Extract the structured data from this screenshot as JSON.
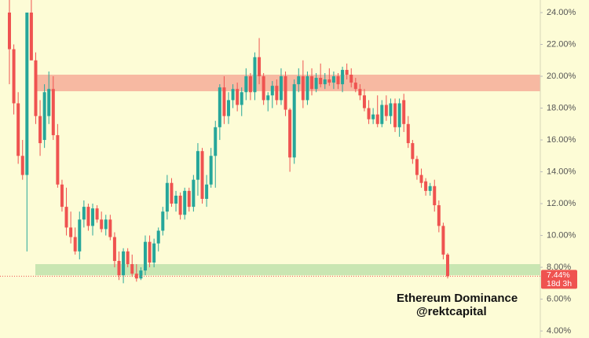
{
  "chart_data": {
    "type": "candlestick",
    "up_color": "#26a69a",
    "down_color": "#ef5350",
    "ylim": [
      3.56,
      24.79
    ],
    "yticks": [
      {
        "value": 4,
        "label": "4.00%"
      },
      {
        "value": 6,
        "label": "6.00%"
      },
      {
        "value": 8,
        "label": "8.00%"
      },
      {
        "value": 10,
        "label": "10.00%"
      },
      {
        "value": 12,
        "label": "12.00%"
      },
      {
        "value": 14,
        "label": "14.00%"
      },
      {
        "value": 16,
        "label": "16.00%"
      },
      {
        "value": 18,
        "label": "18.00%"
      },
      {
        "value": 20,
        "label": "20.00%"
      },
      {
        "value": 22,
        "label": "22.00%"
      },
      {
        "value": 24,
        "label": "24.00%"
      }
    ],
    "grid": false,
    "bands": [
      {
        "from": 19.06,
        "to": 20.1,
        "color": "#f7b9a2"
      },
      {
        "from": 7.5,
        "to": 8.2,
        "color": "#c9e6b2"
      }
    ],
    "last_price": 7.44,
    "last_price_label": "7.44%",
    "countdown": "18d 3h",
    "annotations": [
      "Ethereum Dominance",
      "@rektcapital"
    ],
    "ohlc": [
      [
        24.0,
        24.8,
        19.5,
        21.7
      ],
      [
        21.7,
        22.0,
        17.6,
        18.3
      ],
      [
        18.3,
        19.0,
        14.5,
        15.0
      ],
      [
        15.0,
        16.0,
        13.5,
        13.8
      ],
      [
        13.8,
        24.0,
        9.0,
        24.0
      ],
      [
        24.0,
        24.8,
        21.0,
        21.0
      ],
      [
        21.0,
        21.5,
        17.0,
        17.5
      ],
      [
        17.5,
        18.5,
        15.0,
        15.8
      ],
      [
        16.0,
        19.5,
        15.5,
        19.0
      ],
      [
        17.5,
        20.3,
        17.0,
        19.2
      ],
      [
        19.2,
        20.0,
        16.0,
        16.3
      ],
      [
        16.3,
        17.0,
        13.0,
        13.2
      ],
      [
        13.2,
        13.5,
        11.5,
        11.8
      ],
      [
        11.8,
        13.0,
        10.0,
        10.5
      ],
      [
        10.5,
        11.5,
        9.5,
        9.9
      ],
      [
        9.9,
        10.5,
        8.8,
        9.0
      ],
      [
        9.0,
        11.5,
        8.5,
        11.0
      ],
      [
        11.0,
        12.2,
        10.5,
        11.8
      ],
      [
        11.8,
        12.0,
        10.3,
        10.6
      ],
      [
        10.6,
        12.0,
        10.0,
        11.7
      ],
      [
        11.7,
        11.9,
        10.8,
        11.0
      ],
      [
        11.0,
        11.5,
        10.2,
        10.4
      ],
      [
        10.4,
        11.3,
        10.0,
        11.0
      ],
      [
        11.0,
        11.3,
        9.7,
        9.9
      ],
      [
        9.9,
        10.2,
        8.0,
        8.4
      ],
      [
        8.4,
        9.0,
        7.2,
        7.5
      ],
      [
        7.5,
        9.2,
        7.0,
        9.0
      ],
      [
        9.0,
        9.2,
        8.0,
        8.2
      ],
      [
        8.2,
        8.8,
        7.4,
        7.6
      ],
      [
        7.6,
        8.2,
        7.1,
        7.3
      ],
      [
        7.3,
        8.0,
        7.2,
        7.8
      ],
      [
        7.8,
        10.0,
        7.5,
        9.6
      ],
      [
        9.6,
        10.0,
        8.0,
        8.3
      ],
      [
        8.3,
        9.8,
        8.0,
        9.5
      ],
      [
        9.5,
        10.5,
        9.0,
        10.3
      ],
      [
        10.3,
        11.8,
        10.0,
        11.5
      ],
      [
        11.5,
        13.8,
        11.0,
        13.3
      ],
      [
        13.3,
        13.6,
        11.8,
        12.0
      ],
      [
        12.0,
        12.8,
        11.5,
        12.5
      ],
      [
        12.5,
        12.7,
        11.0,
        11.3
      ],
      [
        11.3,
        13.0,
        11.0,
        12.8
      ],
      [
        12.8,
        13.0,
        11.5,
        11.8
      ],
      [
        11.8,
        13.8,
        11.5,
        13.5
      ],
      [
        13.5,
        15.8,
        12.5,
        15.3
      ],
      [
        15.3,
        15.5,
        12.0,
        12.3
      ],
      [
        12.3,
        13.8,
        11.8,
        13.2
      ],
      [
        13.2,
        15.5,
        13.0,
        15.0
      ],
      [
        15.0,
        17.2,
        13.0,
        16.8
      ],
      [
        16.8,
        19.5,
        16.0,
        19.3
      ],
      [
        19.3,
        20.0,
        17.0,
        17.5
      ],
      [
        17.5,
        19.0,
        17.0,
        18.5
      ],
      [
        18.5,
        19.5,
        18.0,
        19.2
      ],
      [
        19.2,
        19.6,
        17.8,
        18.2
      ],
      [
        18.2,
        19.3,
        17.5,
        19.0
      ],
      [
        19.0,
        20.5,
        18.5,
        20.0
      ],
      [
        20.0,
        20.2,
        18.5,
        19.0
      ],
      [
        19.0,
        21.5,
        18.5,
        21.2
      ],
      [
        21.2,
        22.4,
        19.5,
        20.0
      ],
      [
        20.0,
        20.2,
        18.2,
        18.5
      ],
      [
        18.5,
        19.0,
        17.8,
        18.8
      ],
      [
        18.8,
        19.7,
        18.0,
        19.4
      ],
      [
        19.4,
        19.8,
        18.2,
        18.5
      ],
      [
        18.5,
        20.5,
        18.2,
        20.0
      ],
      [
        20.0,
        20.3,
        17.5,
        17.9
      ],
      [
        17.9,
        18.0,
        14.0,
        14.9
      ],
      [
        14.9,
        19.8,
        14.5,
        19.5
      ],
      [
        19.5,
        20.5,
        19.0,
        20.0
      ],
      [
        20.0,
        21.0,
        18.0,
        18.5
      ],
      [
        18.5,
        20.3,
        18.2,
        20.0
      ],
      [
        20.0,
        20.5,
        18.8,
        19.2
      ],
      [
        19.2,
        20.2,
        19.0,
        19.9
      ],
      [
        19.9,
        20.8,
        19.3,
        19.5
      ],
      [
        19.5,
        20.2,
        19.2,
        19.8
      ],
      [
        19.8,
        20.5,
        19.4,
        19.6
      ],
      [
        19.6,
        20.3,
        19.2,
        20.0
      ],
      [
        20.0,
        20.2,
        19.2,
        19.5
      ],
      [
        19.5,
        20.6,
        19.0,
        20.4
      ],
      [
        20.4,
        20.8,
        19.8,
        20.1
      ],
      [
        20.1,
        20.5,
        19.3,
        19.6
      ],
      [
        19.6,
        19.9,
        19.0,
        19.2
      ],
      [
        19.2,
        19.5,
        18.5,
        18.8
      ],
      [
        18.8,
        19.2,
        17.8,
        18.0
      ],
      [
        18.0,
        18.5,
        17.0,
        17.3
      ],
      [
        17.3,
        18.0,
        17.0,
        17.6
      ],
      [
        17.6,
        18.8,
        16.8,
        17.0
      ],
      [
        17.0,
        18.5,
        16.8,
        18.2
      ],
      [
        18.2,
        18.8,
        17.2,
        17.5
      ],
      [
        17.5,
        18.6,
        17.0,
        18.3
      ],
      [
        18.3,
        18.6,
        16.5,
        16.8
      ],
      [
        16.8,
        18.6,
        16.2,
        18.3
      ],
      [
        18.5,
        18.9,
        16.5,
        17.0
      ],
      [
        17.0,
        17.5,
        15.5,
        15.8
      ],
      [
        15.8,
        16.0,
        14.5,
        14.8
      ],
      [
        14.8,
        15.0,
        13.5,
        13.8
      ],
      [
        13.8,
        14.2,
        13.0,
        13.3
      ],
      [
        13.4,
        13.6,
        12.5,
        12.8
      ],
      [
        12.8,
        13.3,
        12.5,
        13.1
      ],
      [
        13.1,
        13.5,
        11.5,
        11.9
      ],
      [
        11.9,
        12.2,
        10.2,
        10.6
      ],
      [
        10.6,
        10.8,
        8.5,
        8.8
      ],
      [
        8.8,
        8.9,
        7.3,
        7.44
      ]
    ]
  }
}
